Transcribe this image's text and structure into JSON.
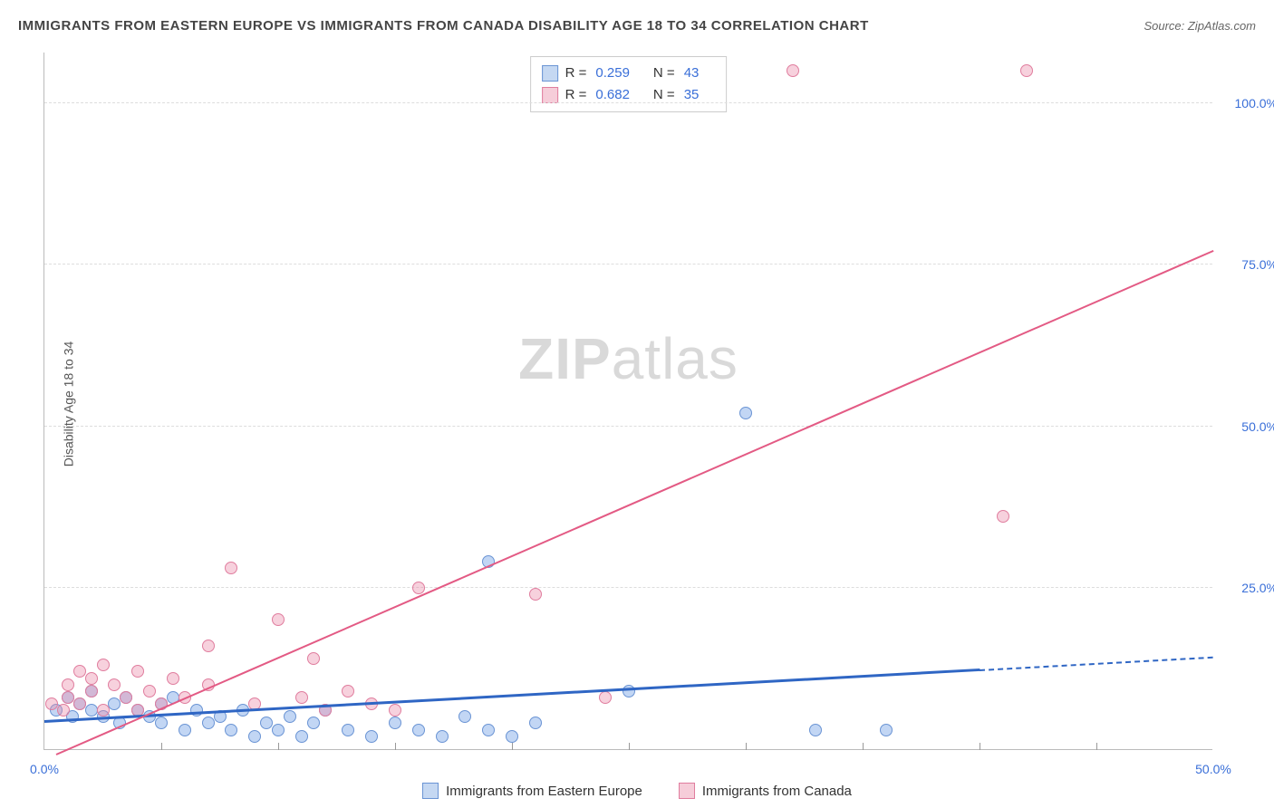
{
  "title": "IMMIGRANTS FROM EASTERN EUROPE VS IMMIGRANTS FROM CANADA DISABILITY AGE 18 TO 34 CORRELATION CHART",
  "source": "Source: ZipAtlas.com",
  "y_axis_label": "Disability Age 18 to 34",
  "watermark_bold": "ZIP",
  "watermark_rest": "atlas",
  "chart": {
    "type": "scatter",
    "xlim": [
      0,
      50
    ],
    "ylim": [
      0,
      108
    ],
    "y_ticks": [
      25,
      50,
      75,
      100
    ],
    "y_tick_labels": [
      "25.0%",
      "50.0%",
      "75.0%",
      "100.0%"
    ],
    "x_ticks": [
      0,
      25,
      50
    ],
    "x_tick_labels": [
      "0.0%",
      "",
      "50.0%"
    ],
    "x_minor_ticks": [
      5,
      10,
      15,
      20,
      25,
      30,
      35,
      40,
      45
    ],
    "background_color": "#ffffff",
    "grid_color": "#dddddd",
    "axis_color": "#bbbbbb",
    "tick_label_color": "#3a6fd8",
    "point_radius": 7,
    "series": [
      {
        "name": "Immigrants from Eastern Europe",
        "color_fill": "rgba(120,165,230,0.45)",
        "color_stroke": "#6a94d4",
        "swatch_fill": "#c5d8f2",
        "swatch_stroke": "#6a94d4",
        "R": "0.259",
        "N": "43",
        "trend": {
          "x1": 0,
          "y1": 4,
          "x2": 40,
          "y2": 12,
          "dash_to_x": 50,
          "dash_to_y": 14,
          "color": "#2f66c4",
          "width": 3
        },
        "points": [
          [
            0.5,
            6
          ],
          [
            1,
            8
          ],
          [
            1.2,
            5
          ],
          [
            1.5,
            7
          ],
          [
            2,
            6
          ],
          [
            2,
            9
          ],
          [
            2.5,
            5
          ],
          [
            3,
            7
          ],
          [
            3.2,
            4
          ],
          [
            3.5,
            8
          ],
          [
            4,
            6
          ],
          [
            4.5,
            5
          ],
          [
            5,
            7
          ],
          [
            5,
            4
          ],
          [
            5.5,
            8
          ],
          [
            6,
            3
          ],
          [
            6.5,
            6
          ],
          [
            7,
            4
          ],
          [
            7.5,
            5
          ],
          [
            8,
            3
          ],
          [
            8.5,
            6
          ],
          [
            9,
            2
          ],
          [
            9.5,
            4
          ],
          [
            10,
            3
          ],
          [
            10.5,
            5
          ],
          [
            11,
            2
          ],
          [
            11.5,
            4
          ],
          [
            12,
            6
          ],
          [
            13,
            3
          ],
          [
            14,
            2
          ],
          [
            15,
            4
          ],
          [
            16,
            3
          ],
          [
            17,
            2
          ],
          [
            18,
            5
          ],
          [
            19,
            3
          ],
          [
            20,
            2
          ],
          [
            21,
            4
          ],
          [
            19,
            29
          ],
          [
            25,
            9
          ],
          [
            30,
            52
          ],
          [
            33,
            3
          ],
          [
            36,
            3
          ]
        ]
      },
      {
        "name": "Immigrants from Canada",
        "color_fill": "rgba(235,140,170,0.40)",
        "color_stroke": "#e07d9e",
        "swatch_fill": "#f6cdd9",
        "swatch_stroke": "#e07d9e",
        "R": "0.682",
        "N": "35",
        "trend": {
          "x1": 0.5,
          "y1": -1,
          "x2": 50,
          "y2": 77,
          "color": "#e35a84",
          "width": 2
        },
        "points": [
          [
            0.3,
            7
          ],
          [
            0.8,
            6
          ],
          [
            1,
            8
          ],
          [
            1,
            10
          ],
          [
            1.5,
            12
          ],
          [
            1.5,
            7
          ],
          [
            2,
            11
          ],
          [
            2,
            9
          ],
          [
            2.5,
            13
          ],
          [
            2.5,
            6
          ],
          [
            3,
            10
          ],
          [
            3.5,
            8
          ],
          [
            4,
            12
          ],
          [
            4,
            6
          ],
          [
            4.5,
            9
          ],
          [
            5,
            7
          ],
          [
            5.5,
            11
          ],
          [
            6,
            8
          ],
          [
            7,
            10
          ],
          [
            7,
            16
          ],
          [
            8,
            28
          ],
          [
            9,
            7
          ],
          [
            10,
            20
          ],
          [
            11,
            8
          ],
          [
            11.5,
            14
          ],
          [
            12,
            6
          ],
          [
            13,
            9
          ],
          [
            14,
            7
          ],
          [
            15,
            6
          ],
          [
            16,
            25
          ],
          [
            21,
            24
          ],
          [
            24,
            8
          ],
          [
            32,
            105
          ],
          [
            41,
            36
          ],
          [
            42,
            105
          ]
        ]
      }
    ]
  },
  "legend_bottom": [
    {
      "label": "Immigrants from Eastern Europe",
      "swatch_fill": "#c5d8f2",
      "swatch_stroke": "#6a94d4"
    },
    {
      "label": "Immigrants from Canada",
      "swatch_fill": "#f6cdd9",
      "swatch_stroke": "#e07d9e"
    }
  ]
}
